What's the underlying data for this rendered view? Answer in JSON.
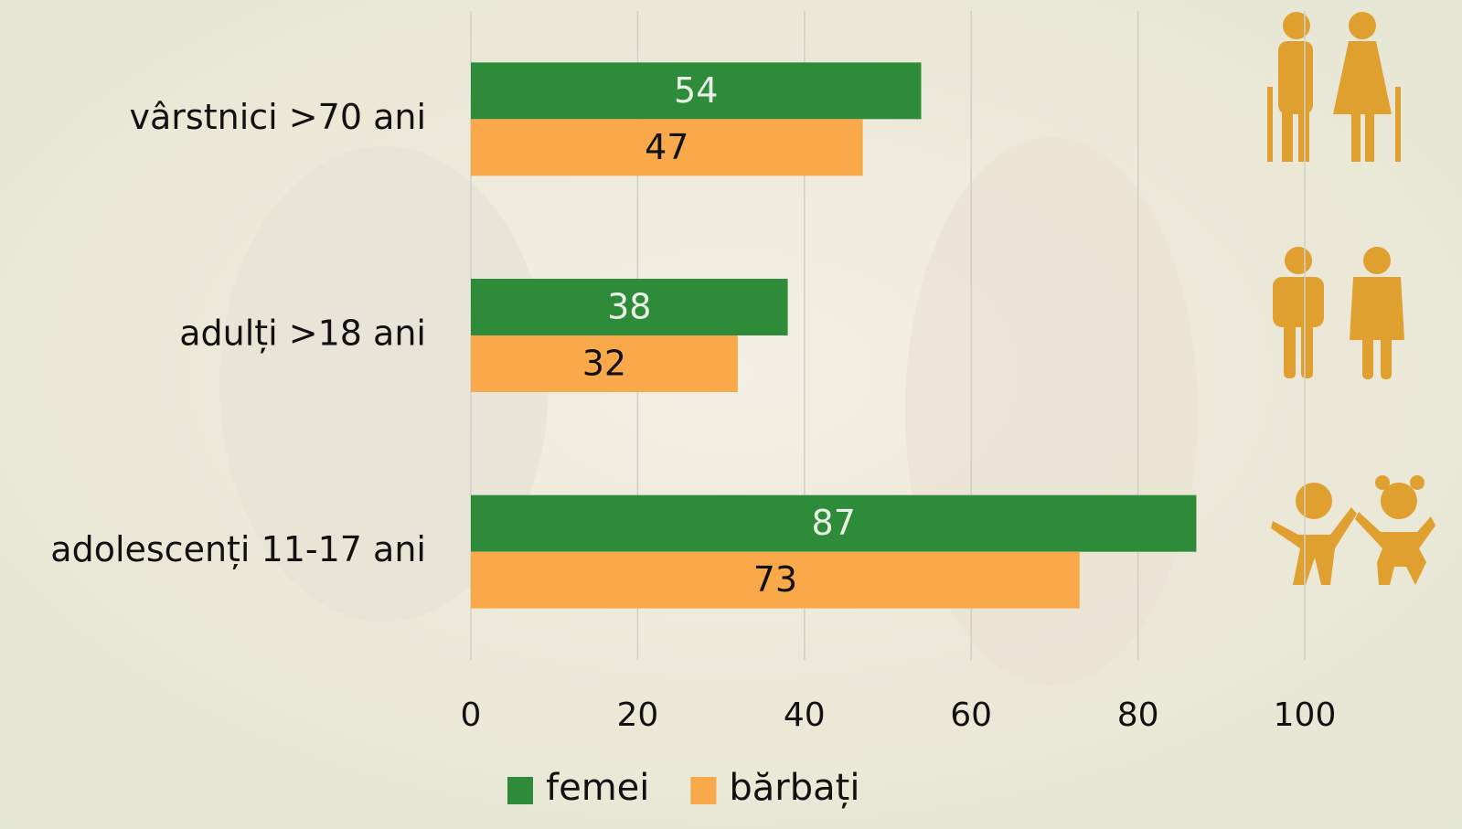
{
  "chart_data": {
    "type": "bar",
    "orientation": "horizontal",
    "categories": [
      "vârstnici >70 ani",
      "adulți >18 ani",
      "adolescenți 11-17 ani"
    ],
    "series": [
      {
        "name": "femei",
        "color": "#2e8b3a",
        "values": [
          54,
          38,
          87
        ]
      },
      {
        "name": "bărbați",
        "color": "#f9a84a",
        "values": [
          47,
          32,
          73
        ]
      }
    ],
    "xlim": [
      0,
      100
    ],
    "xticks": [
      0,
      20,
      40,
      60,
      80,
      100
    ],
    "grid": true,
    "legend": "bottom"
  }
}
